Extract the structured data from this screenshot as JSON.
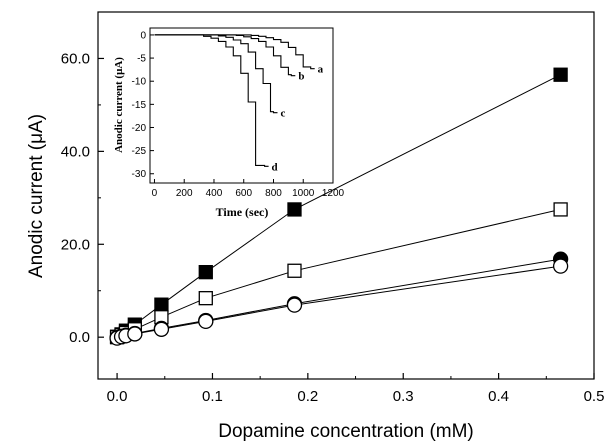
{
  "chart_data": [
    {
      "type": "scatter",
      "title": "",
      "xlabel": "Dopamine concentration (mM)",
      "ylabel": "Anodic current (μA)",
      "xlim": [
        -0.02,
        0.5
      ],
      "ylim": [
        -9,
        70
      ],
      "x_ticks": [
        "0.0",
        "0.1",
        "0.2",
        "0.3",
        "0.4",
        "0.5"
      ],
      "y_ticks": [
        "0.0",
        "20.0",
        "40.0",
        "60.0"
      ],
      "x_tick_values": [
        0,
        0.1,
        0.2,
        0.3,
        0.4,
        0.5
      ],
      "y_tick_values": [
        0,
        20,
        40,
        60
      ],
      "grid": false,
      "legend": "none",
      "series": [
        {
          "marker": "filled-square",
          "x": [
            0,
            0.0047,
            0.0093,
            0.0186,
            0.0465,
            0.093,
            0.186,
            0.465
          ],
          "y": [
            0.1,
            0.6,
            1.4,
            2.7,
            7.0,
            14.0,
            27.5,
            56.5
          ]
        },
        {
          "marker": "open-square",
          "x": [
            0,
            0.0047,
            0.0093,
            0.0186,
            0.0465,
            0.093,
            0.186,
            0.465
          ],
          "y": [
            0.0,
            0.4,
            0.9,
            1.7,
            4.3,
            8.4,
            14.3,
            27.5
          ]
        },
        {
          "marker": "filled-circle",
          "x": [
            0,
            0.0047,
            0.0093,
            0.0186,
            0.0465,
            0.093,
            0.186,
            0.465
          ],
          "y": [
            -0.1,
            0.2,
            0.4,
            0.8,
            1.9,
            3.6,
            7.2,
            16.8
          ]
        },
        {
          "marker": "open-circle",
          "x": [
            0,
            0.0047,
            0.0093,
            0.0186,
            0.0465,
            0.093,
            0.186,
            0.465
          ],
          "y": [
            -0.2,
            0.1,
            0.3,
            0.7,
            1.7,
            3.4,
            6.9,
            15.3
          ]
        }
      ]
    },
    {
      "type": "line",
      "title": "",
      "xlabel": "Time (sec)",
      "ylabel": "Anodic current (μA)",
      "xlim": [
        -30,
        1200
      ],
      "ylim": [
        -32,
        1.5
      ],
      "x_ticks": [
        "0",
        "200",
        "400",
        "600",
        "800",
        "1000",
        "1200"
      ],
      "y_ticks": [
        "0",
        "-5",
        "-10",
        "-15",
        "-20",
        "-25",
        "-30"
      ],
      "x_tick_values": [
        0,
        200,
        400,
        600,
        800,
        1000,
        1200
      ],
      "y_tick_values": [
        0,
        -5,
        -10,
        -15,
        -20,
        -25,
        -30
      ],
      "series": [
        {
          "label": "a",
          "x": [
            0,
            650,
            700,
            750,
            800,
            850,
            900,
            950,
            1000,
            1050
          ],
          "y": [
            0,
            -0.1,
            -0.3,
            -0.6,
            -1.0,
            -1.6,
            -2.7,
            -4.3,
            -6.9,
            -7.3
          ]
        },
        {
          "label": "b",
          "x": [
            0,
            550,
            600,
            650,
            700,
            750,
            800,
            850,
            900,
            920
          ],
          "y": [
            0,
            -0.1,
            -0.4,
            -0.8,
            -1.4,
            -2.6,
            -4.5,
            -7.0,
            -8.6,
            -8.8
          ]
        },
        {
          "label": "c",
          "x": [
            0,
            430,
            480,
            530,
            580,
            630,
            680,
            730,
            780,
            800
          ],
          "y": [
            0,
            -0.2,
            -0.5,
            -1.1,
            -1.9,
            -3.7,
            -7.3,
            -10.5,
            -16.6,
            -16.8
          ]
        },
        {
          "label": "d",
          "x": [
            0,
            330,
            380,
            430,
            480,
            530,
            580,
            630,
            680,
            740
          ],
          "y": [
            0,
            -0.3,
            -0.7,
            -1.4,
            -2.6,
            -4.5,
            -8.3,
            -14.5,
            -28.2,
            -28.4
          ]
        }
      ]
    }
  ]
}
